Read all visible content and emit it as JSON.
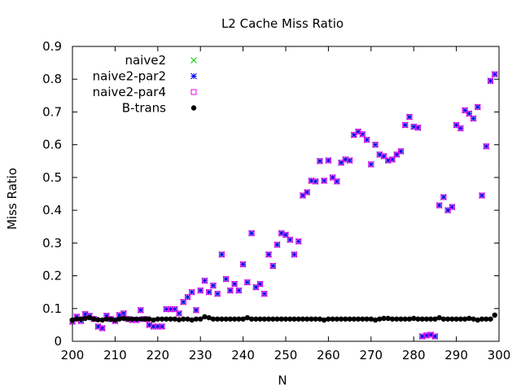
{
  "chart_data": {
    "type": "scatter",
    "title": "L2 Cache Miss Ratio",
    "xlabel": "N",
    "ylabel": "Miss Ratio",
    "xlim": [
      200,
      300
    ],
    "ylim": [
      0,
      0.9
    ],
    "xticks": [
      200,
      210,
      220,
      230,
      240,
      250,
      260,
      270,
      280,
      290,
      300
    ],
    "yticks": [
      0,
      0.1,
      0.2,
      0.3,
      0.4,
      0.5,
      0.6,
      0.7,
      0.8,
      0.9
    ],
    "grid": false,
    "legend_position": "top-left",
    "x": [
      200,
      201,
      202,
      203,
      204,
      205,
      206,
      207,
      208,
      209,
      210,
      211,
      212,
      213,
      214,
      215,
      216,
      217,
      218,
      219,
      220,
      221,
      222,
      223,
      224,
      225,
      226,
      227,
      228,
      229,
      230,
      231,
      232,
      233,
      234,
      235,
      236,
      237,
      238,
      239,
      240,
      241,
      242,
      243,
      244,
      245,
      246,
      247,
      248,
      249,
      250,
      251,
      252,
      253,
      254,
      255,
      256,
      257,
      258,
      259,
      260,
      261,
      262,
      263,
      264,
      265,
      266,
      267,
      268,
      269,
      270,
      271,
      272,
      273,
      274,
      275,
      276,
      277,
      278,
      279,
      280,
      281,
      282,
      283,
      284,
      285,
      286,
      287,
      288,
      289,
      290,
      291,
      292,
      293,
      294,
      295,
      296,
      297,
      298,
      299
    ],
    "series": [
      {
        "name": "naive2",
        "marker": "x",
        "color": "#00cc00",
        "values": [
          0.06,
          0.075,
          0.062,
          0.083,
          0.078,
          0.068,
          0.045,
          0.04,
          0.078,
          0.068,
          0.062,
          0.08,
          0.085,
          0.068,
          0.065,
          0.065,
          0.095,
          0.068,
          0.05,
          0.045,
          0.045,
          0.045,
          0.098,
          0.098,
          0.098,
          0.085,
          0.12,
          0.135,
          0.15,
          0.095,
          0.155,
          0.185,
          0.15,
          0.17,
          0.145,
          0.265,
          0.19,
          0.155,
          0.175,
          0.155,
          0.235,
          0.18,
          0.33,
          0.165,
          0.175,
          0.145,
          0.265,
          0.23,
          0.295,
          0.33,
          0.325,
          0.31,
          0.265,
          0.305,
          0.445,
          0.455,
          0.49,
          0.488,
          0.55,
          0.49,
          0.552,
          0.5,
          0.488,
          0.545,
          0.555,
          0.552,
          0.63,
          0.64,
          0.632,
          0.615,
          0.54,
          0.6,
          0.57,
          0.565,
          0.552,
          0.555,
          0.57,
          0.58,
          0.66,
          0.685,
          0.655,
          0.652,
          0.015,
          0.018,
          0.02,
          0.015,
          0.415,
          0.44,
          0.4,
          0.41,
          0.66,
          0.65,
          0.705,
          0.695,
          0.68,
          0.715,
          0.445,
          0.595,
          0.795,
          0.815
        ]
      },
      {
        "name": "naive2-par2",
        "marker": "asterisk",
        "color": "#0000ee",
        "values": [
          0.06,
          0.075,
          0.062,
          0.083,
          0.078,
          0.068,
          0.045,
          0.04,
          0.078,
          0.068,
          0.062,
          0.08,
          0.085,
          0.068,
          0.065,
          0.065,
          0.095,
          0.068,
          0.05,
          0.045,
          0.045,
          0.045,
          0.098,
          0.098,
          0.098,
          0.085,
          0.12,
          0.135,
          0.15,
          0.095,
          0.155,
          0.185,
          0.15,
          0.17,
          0.145,
          0.265,
          0.19,
          0.155,
          0.175,
          0.155,
          0.235,
          0.18,
          0.33,
          0.165,
          0.175,
          0.145,
          0.265,
          0.23,
          0.295,
          0.33,
          0.325,
          0.31,
          0.265,
          0.305,
          0.445,
          0.455,
          0.49,
          0.488,
          0.55,
          0.49,
          0.552,
          0.5,
          0.488,
          0.545,
          0.555,
          0.552,
          0.63,
          0.64,
          0.632,
          0.615,
          0.54,
          0.6,
          0.57,
          0.565,
          0.552,
          0.555,
          0.57,
          0.58,
          0.66,
          0.685,
          0.655,
          0.652,
          0.015,
          0.018,
          0.02,
          0.015,
          0.415,
          0.44,
          0.4,
          0.41,
          0.66,
          0.65,
          0.705,
          0.695,
          0.68,
          0.715,
          0.445,
          0.595,
          0.795,
          0.815
        ]
      },
      {
        "name": "naive2-par4",
        "marker": "square",
        "color": "#ee00ee",
        "values": [
          0.06,
          0.075,
          0.062,
          0.083,
          0.078,
          0.068,
          0.045,
          0.04,
          0.078,
          0.068,
          0.062,
          0.08,
          0.085,
          0.068,
          0.065,
          0.065,
          0.095,
          0.068,
          0.05,
          0.045,
          0.045,
          0.045,
          0.098,
          0.098,
          0.098,
          0.085,
          0.12,
          0.135,
          0.15,
          0.095,
          0.155,
          0.185,
          0.15,
          0.17,
          0.145,
          0.265,
          0.19,
          0.155,
          0.175,
          0.155,
          0.235,
          0.18,
          0.33,
          0.165,
          0.175,
          0.145,
          0.265,
          0.23,
          0.295,
          0.33,
          0.325,
          0.31,
          0.265,
          0.305,
          0.445,
          0.455,
          0.49,
          0.488,
          0.55,
          0.49,
          0.552,
          0.5,
          0.488,
          0.545,
          0.555,
          0.552,
          0.63,
          0.64,
          0.632,
          0.615,
          0.54,
          0.6,
          0.57,
          0.565,
          0.552,
          0.555,
          0.57,
          0.58,
          0.66,
          0.685,
          0.655,
          0.652,
          0.015,
          0.018,
          0.02,
          0.015,
          0.415,
          0.44,
          0.4,
          0.41,
          0.66,
          0.65,
          0.705,
          0.695,
          0.68,
          0.715,
          0.445,
          0.595,
          0.795,
          0.815
        ]
      },
      {
        "name": "B-trans",
        "marker": "circle",
        "color": "#000000",
        "values": [
          0.065,
          0.068,
          0.068,
          0.07,
          0.072,
          0.068,
          0.066,
          0.065,
          0.068,
          0.067,
          0.065,
          0.068,
          0.07,
          0.068,
          0.068,
          0.068,
          0.068,
          0.068,
          0.068,
          0.065,
          0.068,
          0.068,
          0.068,
          0.068,
          0.068,
          0.066,
          0.068,
          0.068,
          0.065,
          0.068,
          0.068,
          0.075,
          0.072,
          0.068,
          0.068,
          0.068,
          0.068,
          0.068,
          0.068,
          0.068,
          0.068,
          0.072,
          0.068,
          0.068,
          0.068,
          0.068,
          0.068,
          0.068,
          0.068,
          0.068,
          0.068,
          0.068,
          0.068,
          0.068,
          0.068,
          0.068,
          0.068,
          0.068,
          0.068,
          0.065,
          0.068,
          0.068,
          0.068,
          0.068,
          0.068,
          0.068,
          0.068,
          0.068,
          0.068,
          0.068,
          0.068,
          0.065,
          0.068,
          0.07,
          0.07,
          0.068,
          0.068,
          0.068,
          0.068,
          0.068,
          0.07,
          0.068,
          0.068,
          0.068,
          0.068,
          0.068,
          0.072,
          0.068,
          0.068,
          0.068,
          0.068,
          0.068,
          0.068,
          0.07,
          0.068,
          0.065,
          0.068,
          0.068,
          0.068,
          0.08
        ]
      }
    ]
  }
}
